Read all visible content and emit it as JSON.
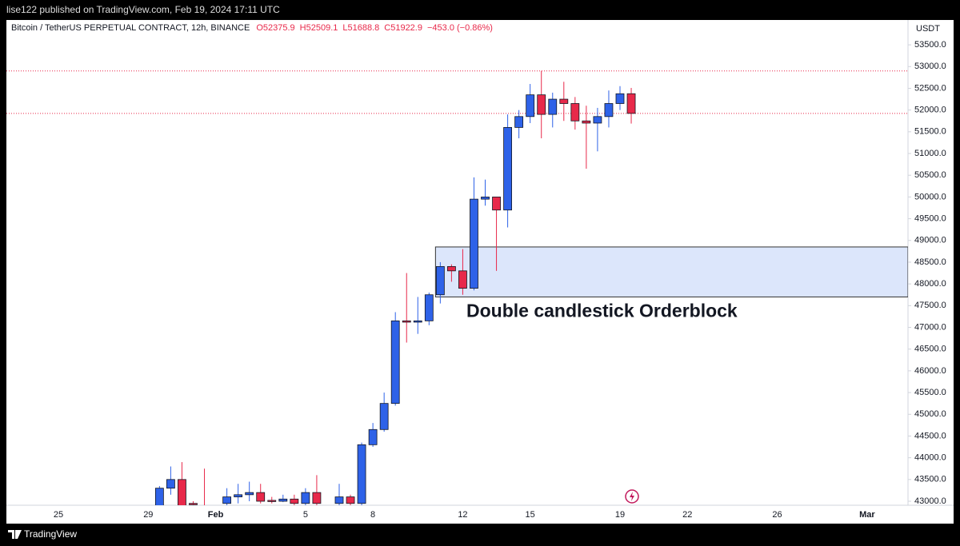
{
  "header": "lise122 published on TradingView.com, Feb 19, 2024 17:11 UTC",
  "footer": "TradingView",
  "chart_data": {
    "type": "candlestick",
    "title": "Bitcoin / TetherUS PERPETUAL CONTRACT, 12h, BINANCE",
    "legend_items": [
      "O52375.9",
      "H52509.1",
      "L51688.8",
      "C51922.9",
      "−453.0 (−0.86%)"
    ],
    "currency": "USDT",
    "up_color": "#2e62e8",
    "down_color": "#e8294a",
    "categories": [
      "25",
      null,
      null,
      null,
      null,
      null,
      null,
      null,
      "29",
      null,
      null,
      null,
      null,
      null,
      "Feb",
      null,
      null,
      null,
      null,
      null,
      null,
      null,
      "5",
      null,
      null,
      null,
      null,
      null,
      "8",
      null,
      null,
      null,
      null,
      null,
      null,
      null,
      "12",
      null,
      null,
      null,
      null,
      null,
      "15",
      null,
      null,
      null,
      null,
      null,
      null,
      null,
      "19",
      null,
      null,
      null,
      null,
      null,
      "22",
      null,
      null,
      null,
      null,
      null,
      null,
      null,
      "26",
      null,
      null,
      null,
      null,
      null,
      null,
      null,
      "Mar"
    ],
    "open": [
      null,
      null,
      null,
      null,
      null,
      null,
      null,
      null,
      null,
      42900,
      43300,
      43500,
      42950,
      42900,
      null,
      42950,
      43100,
      43150,
      43200,
      43020,
      43000,
      43050,
      42950,
      43200,
      null,
      42950,
      43100,
      42950,
      44300,
      44650,
      45250,
      47150,
      47120,
      47150,
      47750,
      48400,
      48300,
      47900,
      49950,
      50000,
      49700,
      51600,
      51850,
      52350,
      51900,
      52250,
      52150,
      51750,
      51700,
      51850,
      52150,
      52375.9,
      null,
      null,
      null,
      null,
      null,
      null,
      null,
      null,
      null,
      null,
      null,
      null,
      null,
      null,
      null,
      null,
      null,
      null,
      null,
      null,
      null
    ],
    "high": [
      null,
      null,
      null,
      null,
      null,
      null,
      null,
      null,
      null,
      43350,
      43800,
      43900,
      43000,
      43750,
      null,
      43300,
      43400,
      43450,
      43400,
      43100,
      43150,
      43150,
      43300,
      43600,
      null,
      43400,
      43150,
      44350,
      44800,
      45500,
      47350,
      48250,
      47700,
      47800,
      48500,
      48450,
      48800,
      50450,
      50400,
      50000,
      51900,
      52000,
      52600,
      52900,
      52400,
      52650,
      52300,
      52100,
      52050,
      52450,
      52550,
      52509.1,
      null,
      null,
      null,
      null,
      null,
      null,
      null,
      null,
      null,
      null,
      null,
      null,
      null,
      null,
      null,
      null,
      null,
      null,
      null,
      null,
      null
    ],
    "low": [
      null,
      null,
      null,
      null,
      null,
      null,
      null,
      null,
      null,
      42850,
      43150,
      42800,
      42850,
      42700,
      null,
      42900,
      42950,
      43000,
      42950,
      42950,
      42980,
      42900,
      42900,
      42900,
      null,
      42900,
      42900,
      42900,
      44250,
      44600,
      45200,
      46650,
      46850,
      47050,
      47550,
      48050,
      47750,
      47850,
      49800,
      48300,
      49300,
      51350,
      51700,
      51350,
      51600,
      51750,
      51550,
      50650,
      51050,
      51600,
      52000,
      51688.8,
      null,
      null,
      null,
      null,
      null,
      null,
      null,
      null,
      null,
      null,
      null,
      null,
      null,
      null,
      null,
      null,
      null,
      null,
      null,
      null,
      null
    ],
    "close": [
      null,
      null,
      null,
      null,
      null,
      null,
      null,
      null,
      null,
      43300,
      43500,
      42900,
      42920,
      42850,
      null,
      43100,
      43150,
      43200,
      43000,
      43000,
      43050,
      42950,
      43200,
      42950,
      null,
      43100,
      42950,
      44300,
      44650,
      45250,
      47150,
      47120,
      47150,
      47750,
      48400,
      48300,
      47900,
      49950,
      50000,
      49700,
      51600,
      51850,
      52350,
      51900,
      52250,
      52150,
      51750,
      51700,
      51850,
      52150,
      52375,
      51922.9,
      null,
      null,
      null,
      null,
      null,
      null,
      null,
      null,
      null,
      null,
      null,
      null,
      null,
      null,
      null,
      null,
      null,
      null,
      null,
      null,
      null
    ],
    "ylim": [
      42908,
      54072
    ],
    "yticks": [
      {
        "value": 43000,
        "label": "43000.0"
      },
      {
        "value": 43500,
        "label": "43500.0"
      },
      {
        "value": 44000,
        "label": "44000.0"
      },
      {
        "value": 44500,
        "label": "44500.0"
      },
      {
        "value": 45000,
        "label": "45000.0"
      },
      {
        "value": 45500,
        "label": "45500.0"
      },
      {
        "value": 46000,
        "label": "46000.0"
      },
      {
        "value": 46500,
        "label": "46500.0"
      },
      {
        "value": 47000,
        "label": "47000.0"
      },
      {
        "value": 47500,
        "label": "47500.0"
      },
      {
        "value": 48000,
        "label": "48000.0"
      },
      {
        "value": 48500,
        "label": "48500.0"
      },
      {
        "value": 49000,
        "label": "49000.0"
      },
      {
        "value": 49500,
        "label": "49500.0"
      },
      {
        "value": 50000,
        "label": "50000.0"
      },
      {
        "value": 50500,
        "label": "50500.0"
      },
      {
        "value": 51000,
        "label": "51000.0"
      },
      {
        "value": 51500,
        "label": "51500.0"
      },
      {
        "value": 52000,
        "label": "52000.0"
      },
      {
        "value": 52500,
        "label": "52500.0"
      },
      {
        "value": 53000,
        "label": "53000.0"
      },
      {
        "value": 53500,
        "label": "53500.0"
      }
    ],
    "price_lines": [
      52900,
      51922.9
    ],
    "zone": {
      "label": "Double candlestick Orderblock",
      "low": 47700,
      "high": 48850
    }
  }
}
